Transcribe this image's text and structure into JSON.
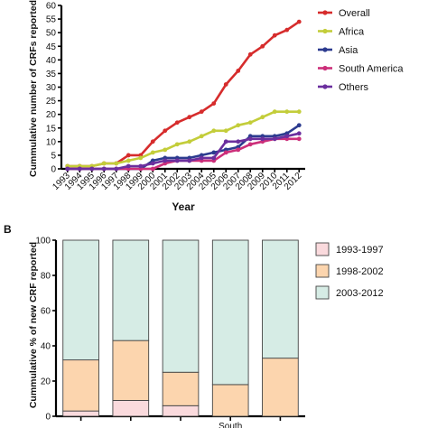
{
  "chart_data": [
    {
      "type": "line",
      "title": "",
      "xlabel": "Year",
      "ylabel": "Cummulative number of CRFs reported",
      "ylim": [
        0,
        60
      ],
      "yticks": [
        0,
        5,
        10,
        15,
        20,
        25,
        30,
        35,
        40,
        45,
        50,
        55,
        60
      ],
      "x": [
        "1993",
        "1994",
        "1995",
        "1996",
        "1997",
        "1998",
        "1999",
        "2000",
        "2001",
        "2002",
        "2003",
        "2004",
        "2005",
        "2006",
        "2007",
        "2008",
        "2009",
        "2010",
        "2011",
        "2012"
      ],
      "legend": "top-right",
      "grid": false,
      "series": [
        {
          "name": "Overall",
          "color": "#d62c2c",
          "values": [
            1,
            1,
            1,
            2,
            2,
            5,
            5,
            10,
            14,
            17,
            19,
            21,
            24,
            31,
            36,
            42,
            45,
            49,
            51,
            54
          ]
        },
        {
          "name": "Africa",
          "color": "#c3cd3a",
          "values": [
            1,
            1,
            1,
            2,
            2,
            3,
            4,
            6,
            7,
            9,
            10,
            12,
            14,
            14,
            16,
            17,
            19,
            21,
            21,
            21
          ]
        },
        {
          "name": "Asia",
          "color": "#2c3b8f",
          "values": [
            0,
            0,
            0,
            0,
            0,
            0,
            0,
            3,
            4,
            4,
            4,
            5,
            6,
            7,
            8,
            12,
            12,
            12,
            13,
            16
          ]
        },
        {
          "name": "South America",
          "color": "#cc2f7a",
          "values": [
            0,
            0,
            0,
            0,
            0,
            0,
            0,
            0,
            2,
            3,
            3,
            3,
            3,
            6,
            7,
            9,
            10,
            11,
            11,
            11
          ]
        },
        {
          "name": "Others",
          "color": "#6b2f9e",
          "values": [
            0,
            0,
            0,
            0,
            0,
            1,
            1,
            2,
            3,
            3,
            3,
            4,
            4,
            10,
            10,
            11,
            11,
            11,
            12,
            13
          ]
        }
      ]
    },
    {
      "type": "bar",
      "stacked": true,
      "panel_label": "B",
      "title": "",
      "xlabel": "",
      "ylabel": "Cummulative % of new CRF reported",
      "ylim": [
        0,
        100
      ],
      "yticks": [
        0,
        20,
        40,
        60,
        80,
        100
      ],
      "categories": [
        "",
        "",
        "",
        "South",
        ""
      ],
      "legend": "right",
      "series": [
        {
          "name": "1993-1997",
          "color": "#fadadd",
          "values": [
            3,
            9,
            6,
            0,
            0
          ]
        },
        {
          "name": "1998-2002",
          "color": "#fcd5ae",
          "values": [
            29,
            34,
            19,
            18,
            33
          ]
        },
        {
          "name": "2003-2012",
          "color": "#d6ece5",
          "values": [
            68,
            57,
            75,
            82,
            67
          ]
        }
      ]
    }
  ]
}
